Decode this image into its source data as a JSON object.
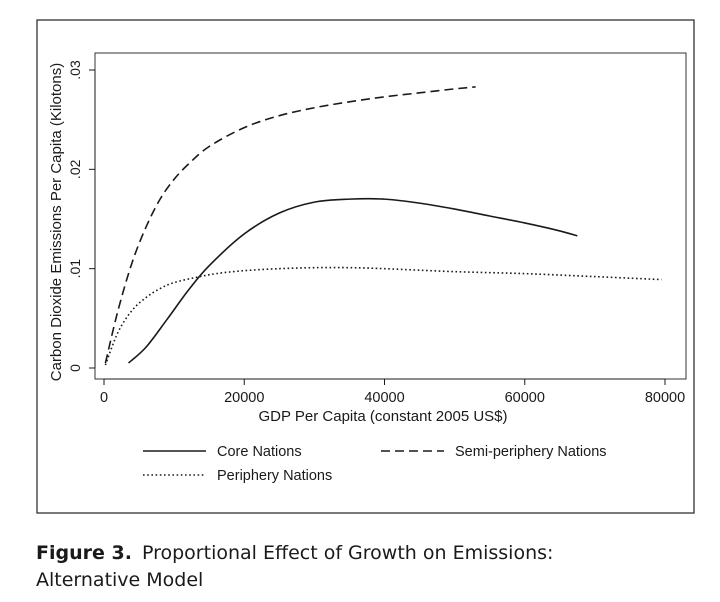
{
  "chart_data": {
    "type": "line",
    "xlabel": "GDP Per Capita (constant 2005 US$)",
    "ylabel": "Carbon Dioxide Emissions Per Capita (Kilotons)",
    "xlim": [
      0,
      80000
    ],
    "ylim": [
      0,
      0.03
    ],
    "xticks": [
      0,
      20000,
      40000,
      60000,
      80000
    ],
    "xtick_labels": [
      "0",
      "20000",
      "40000",
      "60000",
      "80000"
    ],
    "yticks": [
      0,
      0.01,
      0.02,
      0.03
    ],
    "ytick_labels": [
      "0",
      ".01",
      ".02",
      ".03"
    ],
    "grid": false,
    "legend_position": "bottom",
    "series": [
      {
        "name": "Core Nations",
        "style": "solid",
        "x": [
          3500,
          6000,
          9000,
          12000,
          15000,
          20000,
          25000,
          30000,
          35000,
          40000,
          45000,
          50000,
          55000,
          60000,
          65000,
          67500
        ],
        "y": [
          0.0005,
          0.0021,
          0.0049,
          0.0078,
          0.0103,
          0.0135,
          0.0156,
          0.0167,
          0.017,
          0.017,
          0.0166,
          0.016,
          0.0153,
          0.0146,
          0.0138,
          0.0133
        ]
      },
      {
        "name": "Semi-periphery Nations",
        "style": "dashed",
        "x": [
          200,
          2000,
          4000,
          6000,
          8000,
          10000,
          12000,
          15000,
          20000,
          25000,
          30000,
          35000,
          40000,
          45000,
          50000,
          53000
        ],
        "y": [
          0.0005,
          0.0058,
          0.0106,
          0.0142,
          0.017,
          0.019,
          0.0205,
          0.0223,
          0.0242,
          0.0254,
          0.0262,
          0.0268,
          0.0273,
          0.0277,
          0.0281,
          0.0283
        ]
      },
      {
        "name": "Periphery Nations",
        "style": "dotted",
        "x": [
          200,
          2000,
          4000,
          6000,
          8000,
          10000,
          13000,
          16000,
          20000,
          25000,
          30000,
          35000,
          40000,
          50000,
          60000,
          70000,
          79500
        ],
        "y": [
          0.0003,
          0.0036,
          0.0058,
          0.0071,
          0.008,
          0.0086,
          0.0091,
          0.0095,
          0.0098,
          0.01,
          0.0101,
          0.0101,
          0.01,
          0.0097,
          0.0095,
          0.0092,
          0.0089
        ]
      }
    ]
  },
  "caption": {
    "label": "Figure 3.",
    "title_line1": "Proportional Effect of Growth on Emissions:",
    "title_line2": "Alternative Model"
  },
  "colors": {
    "ink": "#1a1a1a",
    "panel_border": "#333333",
    "background": "#ffffff"
  }
}
